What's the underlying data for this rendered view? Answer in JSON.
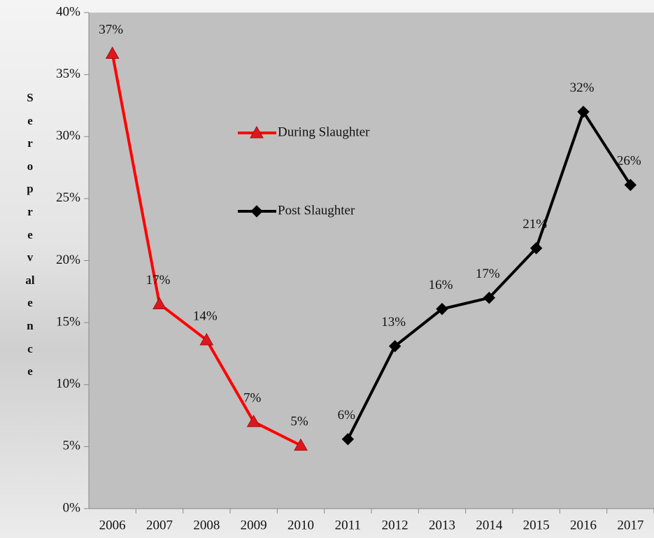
{
  "chart_data": {
    "type": "line",
    "y_label": "Seroprevalence",
    "categories": [
      "2006",
      "2007",
      "2008",
      "2009",
      "2010",
      "2011",
      "2012",
      "2013",
      "2014",
      "2015",
      "2016",
      "2017"
    ],
    "series": [
      {
        "name": "During Slaughter",
        "color": "#ff0000",
        "marker": "triangle",
        "values": [
          36.7,
          16.5,
          13.6,
          7.0,
          5.1,
          null,
          null,
          null,
          null,
          null,
          null,
          null
        ],
        "value_labels": [
          "37%",
          "17%",
          "14%",
          "7%",
          "5%",
          null,
          null,
          null,
          null,
          null,
          null,
          null
        ]
      },
      {
        "name": "Post Slaughter",
        "color": "#000000",
        "marker": "diamond",
        "values": [
          null,
          null,
          null,
          null,
          null,
          5.6,
          13.1,
          16.1,
          17.0,
          21.0,
          32.0,
          26.1
        ],
        "value_labels": [
          null,
          null,
          null,
          null,
          null,
          "6%",
          "13%",
          "16%",
          "17%",
          "21%",
          "32%",
          "26%"
        ]
      }
    ],
    "ylim": [
      0,
      40
    ],
    "yticks": [
      {
        "value": 0,
        "label": "0%"
      },
      {
        "value": 5,
        "label": "5%"
      },
      {
        "value": 10,
        "label": "10%"
      },
      {
        "value": 15,
        "label": "15%"
      },
      {
        "value": 20,
        "label": "20%"
      },
      {
        "value": 25,
        "label": "25%"
      },
      {
        "value": 30,
        "label": "30%"
      },
      {
        "value": 35,
        "label": "35%"
      },
      {
        "value": 40,
        "label": "40%"
      }
    ],
    "grid": false
  }
}
